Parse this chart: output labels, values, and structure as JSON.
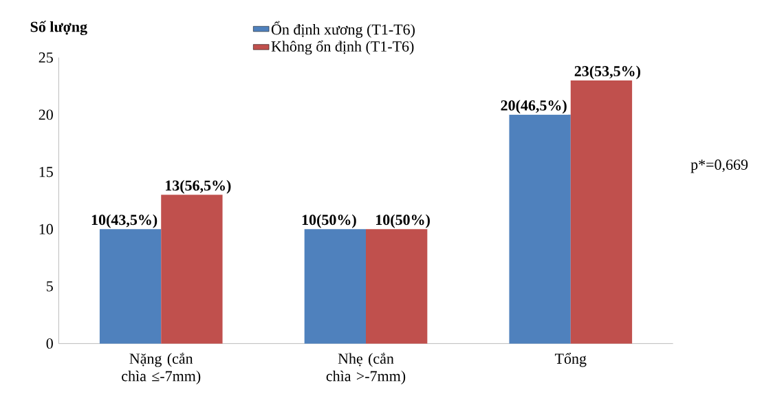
{
  "chart_data": {
    "type": "bar",
    "ylabel": "Số lượng",
    "categories": [
      "Nặng (cắn chìa ≤-7mm)",
      "Nhẹ (cắn chìa >-7mm)",
      "Tổng"
    ],
    "series": [
      {
        "name": "Ổn định xương (T1-T6)",
        "color": "#4f81bd",
        "values": [
          10,
          10,
          20
        ],
        "value_labels": [
          "10(43,5%)",
          "10(50%)",
          "20(46,5%)"
        ]
      },
      {
        "name": "Không ổn định (T1-T6)",
        "color": "#c0504d",
        "values": [
          13,
          10,
          23
        ],
        "value_labels": [
          "13(56,5%)",
          "10(50%)",
          "23(53,5%)"
        ]
      }
    ],
    "ylim": [
      0,
      25
    ],
    "yticks": [
      0,
      5,
      10,
      15,
      20,
      25
    ],
    "grid": false,
    "legend": "top",
    "annotations": [
      "p*=0,669"
    ]
  }
}
